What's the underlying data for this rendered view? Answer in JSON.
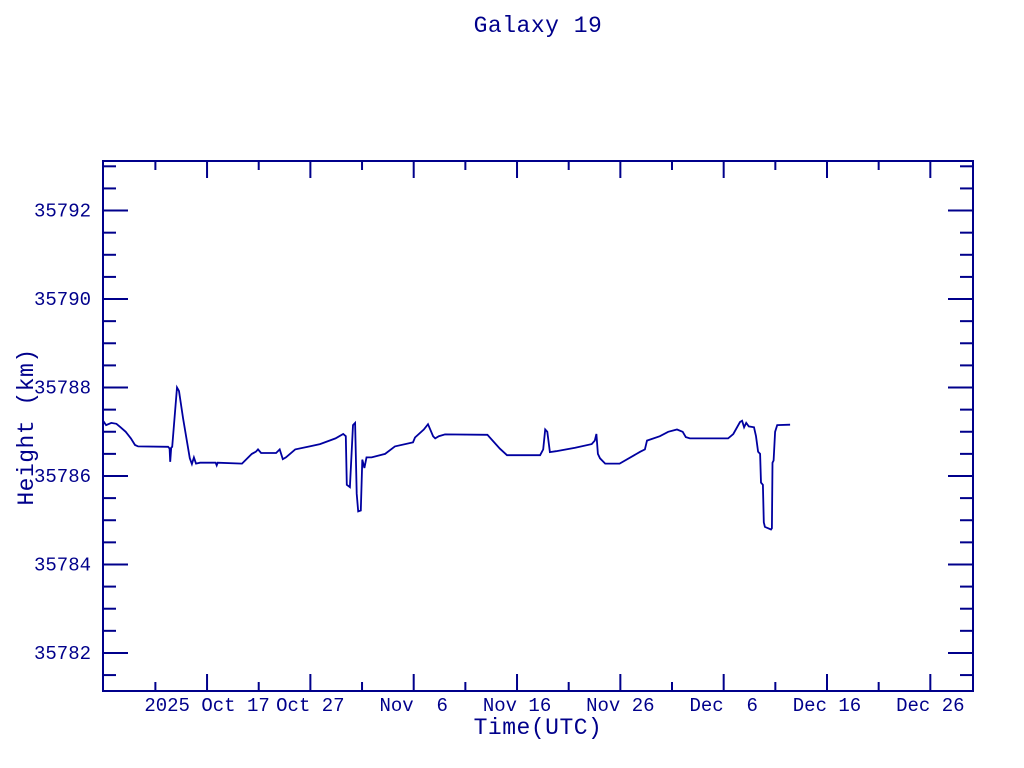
{
  "colors": {
    "background": "#ffffff",
    "text": "#00008b",
    "axis": "#00008b",
    "line": "#0000a0"
  },
  "chart_data": {
    "type": "line",
    "title": "Galaxy 19",
    "xlabel": "Time(UTC)",
    "ylabel": "Height (km)",
    "grid": false,
    "legend": "none",
    "x_unit": "days since 2025-10-07 (left edge of plot)",
    "x_range": [
      0,
      84.2
    ],
    "y_range": [
      35781.14,
      35793.12
    ],
    "x_major_ticks": [
      {
        "t": 10.07,
        "label": "2025 Oct 17"
      },
      {
        "t": 20.07,
        "label": "Oct 27"
      },
      {
        "t": 30.07,
        "label": "Nov  6"
      },
      {
        "t": 40.07,
        "label": "Nov 16"
      },
      {
        "t": 50.07,
        "label": "Nov 26"
      },
      {
        "t": 60.07,
        "label": "Dec  6"
      },
      {
        "t": 70.07,
        "label": "Dec 16"
      },
      {
        "t": 80.07,
        "label": "Dec 26"
      }
    ],
    "x_minor_ticks": [
      5.07,
      15.07,
      25.07,
      35.07,
      45.07,
      55.07,
      65.07,
      75.07
    ],
    "y_major_ticks": [
      35782,
      35784,
      35786,
      35788,
      35790,
      35792
    ],
    "y_minor_ticks": [
      35781.5,
      35782.5,
      35783,
      35783.5,
      35784.5,
      35785,
      35785.5,
      35786.5,
      35787,
      35787.5,
      35788.5,
      35789,
      35789.5,
      35790.5,
      35791,
      35791.5,
      35792.5,
      35793
    ],
    "series": [
      {
        "name": "Galaxy 19 height",
        "color": "#0000a0",
        "points": [
          [
            0.0,
            35787.25
          ],
          [
            0.3,
            35787.15
          ],
          [
            0.8,
            35787.2
          ],
          [
            1.3,
            35787.18
          ],
          [
            1.7,
            35787.1
          ],
          [
            2.2,
            35787.0
          ],
          [
            2.7,
            35786.85
          ],
          [
            3.1,
            35786.7
          ],
          [
            3.4,
            35786.67
          ],
          [
            6.3,
            35786.66
          ],
          [
            6.45,
            35786.62
          ],
          [
            6.5,
            35786.32
          ],
          [
            6.6,
            35786.64
          ],
          [
            6.7,
            35786.66
          ],
          [
            7.16,
            35788.0
          ],
          [
            7.36,
            35787.92
          ],
          [
            7.75,
            35787.3
          ],
          [
            8.4,
            35786.4
          ],
          [
            8.6,
            35786.27
          ],
          [
            8.8,
            35786.42
          ],
          [
            9.0,
            35786.28
          ],
          [
            9.4,
            35786.3
          ],
          [
            10.9,
            35786.3
          ],
          [
            11.0,
            35786.24
          ],
          [
            11.1,
            35786.3
          ],
          [
            13.45,
            35786.28
          ],
          [
            14.4,
            35786.5
          ],
          [
            14.8,
            35786.55
          ],
          [
            15.0,
            35786.6
          ],
          [
            15.3,
            35786.52
          ],
          [
            16.75,
            35786.52
          ],
          [
            17.1,
            35786.6
          ],
          [
            17.4,
            35786.38
          ],
          [
            17.7,
            35786.42
          ],
          [
            18.6,
            35786.6
          ],
          [
            20.0,
            35786.67
          ],
          [
            21.0,
            35786.72
          ],
          [
            22.5,
            35786.85
          ],
          [
            23.25,
            35786.95
          ],
          [
            23.5,
            35786.9
          ],
          [
            23.6,
            35785.8
          ],
          [
            23.9,
            35785.75
          ],
          [
            24.2,
            35787.15
          ],
          [
            24.4,
            35787.2
          ],
          [
            24.55,
            35785.6
          ],
          [
            24.7,
            35785.2
          ],
          [
            24.95,
            35785.22
          ],
          [
            25.1,
            35786.37
          ],
          [
            25.3,
            35786.18
          ],
          [
            25.5,
            35786.42
          ],
          [
            26.0,
            35786.42
          ],
          [
            27.3,
            35786.5
          ],
          [
            28.25,
            35786.67
          ],
          [
            30.0,
            35786.76
          ],
          [
            30.2,
            35786.87
          ],
          [
            31.05,
            35787.05
          ],
          [
            31.45,
            35787.17
          ],
          [
            31.95,
            35786.9
          ],
          [
            32.15,
            35786.85
          ],
          [
            32.5,
            35786.9
          ],
          [
            33.1,
            35786.94
          ],
          [
            37.2,
            35786.93
          ],
          [
            38.4,
            35786.62
          ],
          [
            39.1,
            35786.47
          ],
          [
            42.3,
            35786.47
          ],
          [
            42.6,
            35786.6
          ],
          [
            42.8,
            35787.05
          ],
          [
            43.0,
            35787.0
          ],
          [
            43.25,
            35786.54
          ],
          [
            43.85,
            35786.56
          ],
          [
            45.7,
            35786.64
          ],
          [
            47.3,
            35786.72
          ],
          [
            47.6,
            35786.8
          ],
          [
            47.75,
            35786.95
          ],
          [
            47.9,
            35786.5
          ],
          [
            48.1,
            35786.4
          ],
          [
            48.6,
            35786.28
          ],
          [
            50.0,
            35786.28
          ],
          [
            52.0,
            35786.55
          ],
          [
            52.45,
            35786.6
          ],
          [
            52.65,
            35786.8
          ],
          [
            53.9,
            35786.9
          ],
          [
            54.7,
            35787.0
          ],
          [
            55.55,
            35787.05
          ],
          [
            56.1,
            35787.0
          ],
          [
            56.4,
            35786.88
          ],
          [
            56.8,
            35786.85
          ],
          [
            60.5,
            35786.85
          ],
          [
            61.0,
            35786.95
          ],
          [
            61.65,
            35787.22
          ],
          [
            61.85,
            35787.25
          ],
          [
            62.05,
            35787.1
          ],
          [
            62.25,
            35787.2
          ],
          [
            62.5,
            35787.12
          ],
          [
            63.0,
            35787.1
          ],
          [
            63.2,
            35786.9
          ],
          [
            63.4,
            35786.55
          ],
          [
            63.6,
            35786.5
          ],
          [
            63.68,
            35785.85
          ],
          [
            63.87,
            35785.8
          ],
          [
            63.95,
            35784.95
          ],
          [
            64.06,
            35784.85
          ],
          [
            64.65,
            35784.79
          ],
          [
            64.74,
            35784.82
          ],
          [
            64.8,
            35786.3
          ],
          [
            64.9,
            35786.35
          ],
          [
            65.05,
            35787.0
          ],
          [
            65.25,
            35787.15
          ],
          [
            66.5,
            35787.16
          ]
        ]
      }
    ]
  }
}
